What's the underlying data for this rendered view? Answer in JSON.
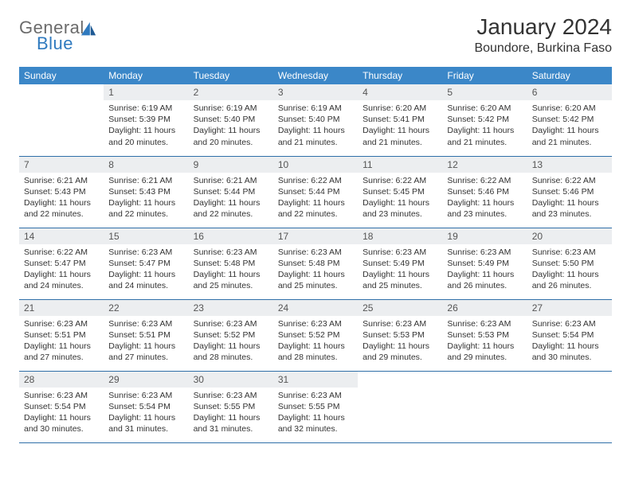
{
  "logo": {
    "word1": "General",
    "word2": "Blue"
  },
  "title": "January 2024",
  "location": "Boundore, Burkina Faso",
  "colors": {
    "header_bg": "#3b87c8",
    "header_text": "#ffffff",
    "daynum_bg": "#eceef0",
    "cell_border": "#2f6fa8",
    "logo_gray": "#6b6b6b",
    "logo_blue": "#2f7abf",
    "text": "#333333",
    "background": "#ffffff"
  },
  "weekdays": [
    "Sunday",
    "Monday",
    "Tuesday",
    "Wednesday",
    "Thursday",
    "Friday",
    "Saturday"
  ],
  "weeks": [
    [
      {
        "n": "",
        "sr": "",
        "ss": "",
        "dl": ""
      },
      {
        "n": "1",
        "sr": "Sunrise: 6:19 AM",
        "ss": "Sunset: 5:39 PM",
        "dl": "Daylight: 11 hours and 20 minutes."
      },
      {
        "n": "2",
        "sr": "Sunrise: 6:19 AM",
        "ss": "Sunset: 5:40 PM",
        "dl": "Daylight: 11 hours and 20 minutes."
      },
      {
        "n": "3",
        "sr": "Sunrise: 6:19 AM",
        "ss": "Sunset: 5:40 PM",
        "dl": "Daylight: 11 hours and 21 minutes."
      },
      {
        "n": "4",
        "sr": "Sunrise: 6:20 AM",
        "ss": "Sunset: 5:41 PM",
        "dl": "Daylight: 11 hours and 21 minutes."
      },
      {
        "n": "5",
        "sr": "Sunrise: 6:20 AM",
        "ss": "Sunset: 5:42 PM",
        "dl": "Daylight: 11 hours and 21 minutes."
      },
      {
        "n": "6",
        "sr": "Sunrise: 6:20 AM",
        "ss": "Sunset: 5:42 PM",
        "dl": "Daylight: 11 hours and 21 minutes."
      }
    ],
    [
      {
        "n": "7",
        "sr": "Sunrise: 6:21 AM",
        "ss": "Sunset: 5:43 PM",
        "dl": "Daylight: 11 hours and 22 minutes."
      },
      {
        "n": "8",
        "sr": "Sunrise: 6:21 AM",
        "ss": "Sunset: 5:43 PM",
        "dl": "Daylight: 11 hours and 22 minutes."
      },
      {
        "n": "9",
        "sr": "Sunrise: 6:21 AM",
        "ss": "Sunset: 5:44 PM",
        "dl": "Daylight: 11 hours and 22 minutes."
      },
      {
        "n": "10",
        "sr": "Sunrise: 6:22 AM",
        "ss": "Sunset: 5:44 PM",
        "dl": "Daylight: 11 hours and 22 minutes."
      },
      {
        "n": "11",
        "sr": "Sunrise: 6:22 AM",
        "ss": "Sunset: 5:45 PM",
        "dl": "Daylight: 11 hours and 23 minutes."
      },
      {
        "n": "12",
        "sr": "Sunrise: 6:22 AM",
        "ss": "Sunset: 5:46 PM",
        "dl": "Daylight: 11 hours and 23 minutes."
      },
      {
        "n": "13",
        "sr": "Sunrise: 6:22 AM",
        "ss": "Sunset: 5:46 PM",
        "dl": "Daylight: 11 hours and 23 minutes."
      }
    ],
    [
      {
        "n": "14",
        "sr": "Sunrise: 6:22 AM",
        "ss": "Sunset: 5:47 PM",
        "dl": "Daylight: 11 hours and 24 minutes."
      },
      {
        "n": "15",
        "sr": "Sunrise: 6:23 AM",
        "ss": "Sunset: 5:47 PM",
        "dl": "Daylight: 11 hours and 24 minutes."
      },
      {
        "n": "16",
        "sr": "Sunrise: 6:23 AM",
        "ss": "Sunset: 5:48 PM",
        "dl": "Daylight: 11 hours and 25 minutes."
      },
      {
        "n": "17",
        "sr": "Sunrise: 6:23 AM",
        "ss": "Sunset: 5:48 PM",
        "dl": "Daylight: 11 hours and 25 minutes."
      },
      {
        "n": "18",
        "sr": "Sunrise: 6:23 AM",
        "ss": "Sunset: 5:49 PM",
        "dl": "Daylight: 11 hours and 25 minutes."
      },
      {
        "n": "19",
        "sr": "Sunrise: 6:23 AM",
        "ss": "Sunset: 5:49 PM",
        "dl": "Daylight: 11 hours and 26 minutes."
      },
      {
        "n": "20",
        "sr": "Sunrise: 6:23 AM",
        "ss": "Sunset: 5:50 PM",
        "dl": "Daylight: 11 hours and 26 minutes."
      }
    ],
    [
      {
        "n": "21",
        "sr": "Sunrise: 6:23 AM",
        "ss": "Sunset: 5:51 PM",
        "dl": "Daylight: 11 hours and 27 minutes."
      },
      {
        "n": "22",
        "sr": "Sunrise: 6:23 AM",
        "ss": "Sunset: 5:51 PM",
        "dl": "Daylight: 11 hours and 27 minutes."
      },
      {
        "n": "23",
        "sr": "Sunrise: 6:23 AM",
        "ss": "Sunset: 5:52 PM",
        "dl": "Daylight: 11 hours and 28 minutes."
      },
      {
        "n": "24",
        "sr": "Sunrise: 6:23 AM",
        "ss": "Sunset: 5:52 PM",
        "dl": "Daylight: 11 hours and 28 minutes."
      },
      {
        "n": "25",
        "sr": "Sunrise: 6:23 AM",
        "ss": "Sunset: 5:53 PM",
        "dl": "Daylight: 11 hours and 29 minutes."
      },
      {
        "n": "26",
        "sr": "Sunrise: 6:23 AM",
        "ss": "Sunset: 5:53 PM",
        "dl": "Daylight: 11 hours and 29 minutes."
      },
      {
        "n": "27",
        "sr": "Sunrise: 6:23 AM",
        "ss": "Sunset: 5:54 PM",
        "dl": "Daylight: 11 hours and 30 minutes."
      }
    ],
    [
      {
        "n": "28",
        "sr": "Sunrise: 6:23 AM",
        "ss": "Sunset: 5:54 PM",
        "dl": "Daylight: 11 hours and 30 minutes."
      },
      {
        "n": "29",
        "sr": "Sunrise: 6:23 AM",
        "ss": "Sunset: 5:54 PM",
        "dl": "Daylight: 11 hours and 31 minutes."
      },
      {
        "n": "30",
        "sr": "Sunrise: 6:23 AM",
        "ss": "Sunset: 5:55 PM",
        "dl": "Daylight: 11 hours and 31 minutes."
      },
      {
        "n": "31",
        "sr": "Sunrise: 6:23 AM",
        "ss": "Sunset: 5:55 PM",
        "dl": "Daylight: 11 hours and 32 minutes."
      },
      {
        "n": "",
        "sr": "",
        "ss": "",
        "dl": ""
      },
      {
        "n": "",
        "sr": "",
        "ss": "",
        "dl": ""
      },
      {
        "n": "",
        "sr": "",
        "ss": "",
        "dl": ""
      }
    ]
  ]
}
